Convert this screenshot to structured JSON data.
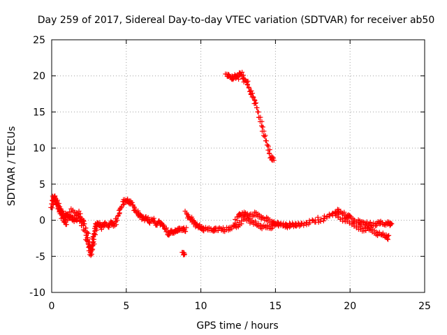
{
  "chart_data": {
    "type": "scatter",
    "title": "Day 259 of 2017, Sidereal Day-to-day VTEC variation (SDTVAR) for receiver ab50",
    "xlabel": "GPS time / hours",
    "ylabel": "SDTVAR / TECUs",
    "xlim": [
      0,
      25
    ],
    "ylim": [
      -10,
      25
    ],
    "xticks": [
      0,
      5,
      10,
      15,
      20,
      25
    ],
    "yticks": [
      -10,
      -5,
      0,
      5,
      10,
      15,
      20,
      25
    ],
    "grid": true,
    "marker": "+",
    "series": [
      {
        "name": "SDTVAR",
        "color": "#ff0000",
        "segments": [
          {
            "x": [
              0.0,
              0.1,
              0.2,
              0.3,
              0.4,
              0.5,
              0.6,
              0.7,
              0.8,
              0.9,
              1.0,
              1.2,
              1.4,
              1.6,
              1.8,
              2.0,
              2.2,
              2.4,
              2.5,
              2.6,
              2.7,
              2.8,
              2.9,
              3.0,
              3.2,
              3.4,
              3.6,
              3.8,
              4.0,
              4.2,
              4.4,
              4.6,
              4.8,
              5.0,
              5.2,
              5.4,
              5.6,
              5.8,
              6.0,
              6.2,
              6.4,
              6.6,
              6.8,
              7.0,
              7.2,
              7.4,
              7.6,
              7.8,
              8.0,
              8.2,
              8.4,
              8.6,
              8.8,
              9.0
            ],
            "y": [
              1.5,
              3.3,
              3.0,
              2.6,
              2.2,
              1.8,
              1.2,
              1.0,
              0.6,
              0.4,
              0.8,
              0.5,
              0.2,
              0.0,
              1.0,
              0.2,
              -0.5,
              -2.0,
              -3.5,
              -4.8,
              -4.0,
              -2.5,
              -1.0,
              -0.6,
              -0.5,
              -1.0,
              -0.4,
              -0.8,
              -0.4,
              -0.6,
              0.2,
              1.5,
              2.5,
              2.8,
              2.6,
              2.2,
              1.5,
              0.8,
              0.5,
              0.2,
              0.3,
              -0.2,
              0.0,
              -0.5,
              -0.3,
              -0.6,
              -1.0,
              -2.0,
              -1.5,
              -1.8,
              -1.2,
              -1.4,
              -1.2,
              -1.3
            ]
          },
          {
            "x": [
              0.05,
              0.2,
              0.4,
              0.6,
              0.8,
              1.0,
              1.3,
              1.6,
              1.9,
              2.2,
              2.4,
              2.6,
              2.8,
              3.0
            ],
            "y": [
              2.0,
              3.5,
              2.0,
              1.0,
              0.0,
              -0.5,
              1.5,
              0.8,
              0.0,
              -1.5,
              -3.0,
              -4.0,
              -3.2,
              -1.0
            ]
          },
          {
            "x": [
              8.8,
              8.9
            ],
            "y": [
              -4.7,
              -4.5
            ]
          },
          {
            "x": [
              9.0,
              9.2,
              9.4,
              9.6,
              9.8,
              10.0,
              10.2,
              10.5,
              10.8,
              11.0,
              11.3,
              11.6,
              11.9,
              12.2,
              12.5,
              12.7,
              13.0,
              13.3,
              13.6,
              13.9,
              14.2,
              14.5,
              14.8,
              15.0,
              15.5,
              16.0,
              16.5,
              17.0,
              17.5,
              18.0,
              18.5,
              19.0,
              19.2,
              19.5,
              19.8,
              20.0,
              20.3,
              20.6,
              20.9,
              21.2,
              21.5,
              21.8,
              22.0,
              22.3,
              22.6,
              22.8
            ],
            "y": [
              1.0,
              0.5,
              0.0,
              -0.5,
              -0.8,
              -1.0,
              -1.2,
              -1.3,
              -1.2,
              -1.4,
              -1.2,
              -1.3,
              -1.2,
              -0.8,
              0.5,
              1.0,
              0.8,
              0.7,
              0.9,
              0.6,
              0.3,
              0.0,
              -0.3,
              -0.5,
              -0.6,
              -0.7,
              -0.6,
              -0.4,
              -0.2,
              0.0,
              0.5,
              1.0,
              1.3,
              1.0,
              0.6,
              0.4,
              0.0,
              -0.3,
              -0.4,
              -0.5,
              -0.6,
              -0.5,
              -0.4,
              -0.4,
              -0.5,
              -0.6
            ]
          },
          {
            "x": [
              12.3,
              12.6,
              12.9,
              13.2,
              13.5,
              13.8,
              14.1,
              14.4,
              14.7,
              15.0,
              15.4,
              15.8,
              16.3,
              16.8,
              19.0,
              19.4,
              19.8,
              20.2,
              20.6,
              20.9,
              21.2,
              21.5,
              21.8,
              22.1,
              22.4,
              22.6
            ],
            "y": [
              -1.0,
              -0.5,
              0.3,
              0.0,
              -0.3,
              -0.6,
              -0.9,
              -1.0,
              -0.9,
              -0.7,
              -0.6,
              -0.8,
              -0.7,
              -0.5,
              0.8,
              0.3,
              -0.2,
              -0.6,
              -1.0,
              -1.4,
              -1.0,
              -1.5,
              -1.8,
              -2.0,
              -2.2,
              -2.4
            ]
          },
          {
            "x": [
              11.7,
              11.9,
              12.1,
              12.3,
              12.5,
              12.7,
              12.9,
              13.1,
              13.3,
              13.5,
              13.7,
              13.9,
              14.1,
              14.3,
              14.5,
              14.7,
              14.9
            ],
            "y": [
              20.0,
              20.2,
              19.5,
              20.0,
              19.8,
              20.5,
              19.5,
              19.0,
              18.0,
              17.0,
              16.0,
              14.5,
              13.0,
              11.5,
              10.0,
              8.8,
              8.3
            ]
          }
        ]
      }
    ]
  }
}
